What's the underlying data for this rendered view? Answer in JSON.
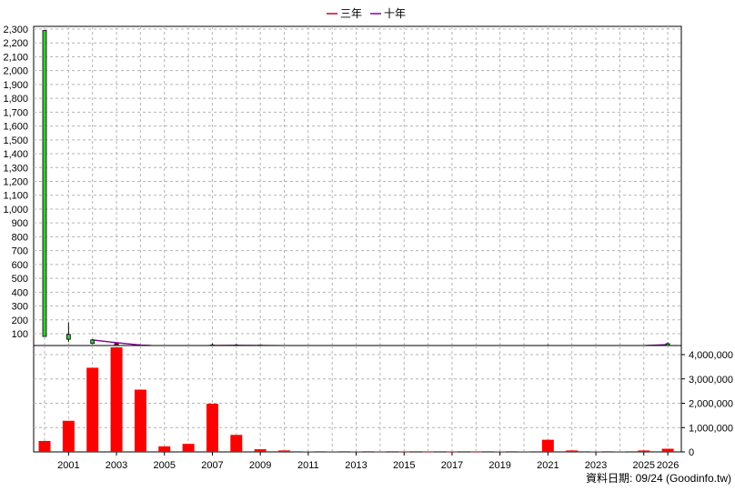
{
  "legend": [
    {
      "label": "三年",
      "color": "#cc0033"
    },
    {
      "label": "十年",
      "color": "#8800aa"
    }
  ],
  "footer": "資料日期: 09/24  (Goodinfo.tw)",
  "chart_data": [
    {
      "type": "candlestick+line",
      "ylim": [
        50,
        2300
      ],
      "y_ticks": [
        100,
        200,
        300,
        400,
        500,
        600,
        700,
        800,
        900,
        1000,
        1100,
        1200,
        1300,
        1400,
        1500,
        1600,
        1700,
        1800,
        1900,
        2000,
        2100,
        2200,
        2300
      ],
      "y_tick_labels": [
        "100",
        "200",
        "300",
        "400",
        "500",
        "600",
        "700",
        "800",
        "900",
        "1,000",
        "1,100",
        "1,200",
        "1,300",
        "1,400",
        "1,500",
        "1,600",
        "1,700",
        "1,800",
        "1,900",
        "2,000",
        "2,100",
        "2,200",
        "2,300"
      ],
      "candles": [
        {
          "year": 2000,
          "open": 80,
          "close": 2290,
          "high": 2290,
          "low": 80,
          "color": "#33cc33"
        },
        {
          "year": 2001,
          "open": 60,
          "close": 95,
          "high": 180,
          "low": 40,
          "color": "#33cc33"
        },
        {
          "year": 2002,
          "open": 30,
          "close": 55,
          "high": 60,
          "low": 25,
          "color": "#33cc33"
        },
        {
          "year": 2003,
          "open": 22,
          "close": 28,
          "high": 30,
          "low": 20,
          "color": "#cc0000"
        },
        {
          "year": 2004,
          "open": 12,
          "close": 16,
          "high": 18,
          "low": 10,
          "color": "#cc0000"
        },
        {
          "year": 2005,
          "open": 9,
          "close": 11,
          "high": 12,
          "low": 8,
          "color": "#cc0000"
        },
        {
          "year": 2006,
          "open": 10,
          "close": 12,
          "high": 14,
          "low": 9,
          "color": "#cc0000"
        },
        {
          "year": 2007,
          "open": 14,
          "close": 18,
          "high": 30,
          "low": 12,
          "color": "#cc0000"
        },
        {
          "year": 2008,
          "open": 16,
          "close": 18,
          "high": 25,
          "low": 14,
          "color": "#cc0000"
        },
        {
          "year": 2009,
          "open": 16,
          "close": 17,
          "high": 19,
          "low": 15,
          "color": "#cc0000"
        },
        {
          "year": 2010,
          "open": 14,
          "close": 15,
          "high": 16,
          "low": 13,
          "color": "#cc0000"
        },
        {
          "year": 2011,
          "open": 13,
          "close": 14,
          "high": 15,
          "low": 12,
          "color": "#cc0000"
        },
        {
          "year": 2012,
          "open": 12,
          "close": 13,
          "high": 14,
          "low": 11,
          "color": "#cc0000"
        },
        {
          "year": 2013,
          "open": 11,
          "close": 12,
          "high": 13,
          "low": 10,
          "color": "#cc0000"
        },
        {
          "year": 2014,
          "open": 12,
          "close": 13,
          "high": 14,
          "low": 11,
          "color": "#cc0000"
        },
        {
          "year": 2015,
          "open": 12,
          "close": 13,
          "high": 14,
          "low": 11,
          "color": "#cc0000"
        },
        {
          "year": 2016,
          "open": 12,
          "close": 13,
          "high": 14,
          "low": 11,
          "color": "#cc0000"
        },
        {
          "year": 2017,
          "open": 12,
          "close": 13,
          "high": 14,
          "low": 11,
          "color": "#cc0000"
        },
        {
          "year": 2018,
          "open": 12,
          "close": 13,
          "high": 14,
          "low": 11,
          "color": "#cc0000"
        },
        {
          "year": 2019,
          "open": 12,
          "close": 13,
          "high": 14,
          "low": 11,
          "color": "#cc0000"
        },
        {
          "year": 2020,
          "open": 12,
          "close": 13,
          "high": 14,
          "low": 11,
          "color": "#cc0000"
        },
        {
          "year": 2021,
          "open": 13,
          "close": 15,
          "high": 22,
          "low": 12,
          "color": "#cc0000"
        },
        {
          "year": 2022,
          "open": 13,
          "close": 14,
          "high": 18,
          "low": 12,
          "color": "#cc0000"
        },
        {
          "year": 2023,
          "open": 12,
          "close": 13,
          "high": 14,
          "low": 11,
          "color": "#cc0000"
        },
        {
          "year": 2024,
          "open": 13,
          "close": 14,
          "high": 15,
          "low": 12,
          "color": "#cc0000"
        },
        {
          "year": 2025,
          "open": 13,
          "close": 15,
          "high": 16,
          "low": 12,
          "color": "#cc0000"
        },
        {
          "year": 2026,
          "open": 18,
          "close": 28,
          "high": 38,
          "low": 16,
          "color": "#33cc33"
        }
      ],
      "series": [
        {
          "name": "三年",
          "color": "#cc0033",
          "x": [
            2002,
            2003,
            2004,
            2005,
            2006,
            2007,
            2008,
            2009,
            2010,
            2011,
            2012,
            2013,
            2014,
            2015,
            2016,
            2017,
            2018,
            2019,
            2020,
            2021,
            2022,
            2023,
            2024,
            2025,
            2026
          ],
          "values": [
            55,
            35,
            18,
            10,
            11,
            15,
            16,
            15,
            14,
            13,
            12,
            11,
            12,
            12,
            12,
            12,
            12,
            12,
            12,
            13,
            13,
            13,
            13,
            14,
            20
          ]
        },
        {
          "name": "十年",
          "color": "#8800aa",
          "x": [
            2002,
            2003,
            2004,
            2005,
            2006,
            2007,
            2008,
            2009,
            2010,
            2011,
            2012,
            2013,
            2014,
            2015,
            2016,
            2017,
            2018,
            2019,
            2020,
            2021,
            2022,
            2023,
            2024,
            2025,
            2026
          ],
          "values": [
            55,
            35,
            18,
            10,
            11,
            15,
            16,
            15,
            14,
            13,
            12,
            11,
            12,
            12,
            12,
            12,
            12,
            12,
            12,
            13,
            13,
            13,
            13,
            14,
            22
          ]
        }
      ]
    },
    {
      "type": "bar",
      "color": "#ff0000",
      "ylim": [
        0,
        4300000
      ],
      "y_ticks": [
        0,
        1000000,
        2000000,
        3000000,
        4000000
      ],
      "y_tick_labels": [
        "0",
        "1,000,000",
        "2,000,000",
        "3,000,000",
        "4,000,000"
      ],
      "x": [
        2000,
        2001,
        2002,
        2003,
        2004,
        2005,
        2006,
        2007,
        2008,
        2009,
        2010,
        2011,
        2012,
        2013,
        2014,
        2015,
        2016,
        2017,
        2018,
        2019,
        2020,
        2021,
        2022,
        2023,
        2024,
        2025,
        2026
      ],
      "values": [
        450000,
        1280000,
        3460000,
        4300000,
        2560000,
        230000,
        330000,
        1980000,
        700000,
        110000,
        60000,
        20000,
        20000,
        15000,
        15000,
        10000,
        10000,
        10000,
        10000,
        15000,
        20000,
        500000,
        60000,
        15000,
        20000,
        60000,
        130000
      ],
      "x_tick_labels": [
        "2001",
        "2003",
        "2005",
        "2007",
        "2009",
        "2011",
        "2013",
        "2015",
        "2017",
        "2019",
        "2021",
        "2023",
        "2025",
        "2026"
      ]
    }
  ]
}
